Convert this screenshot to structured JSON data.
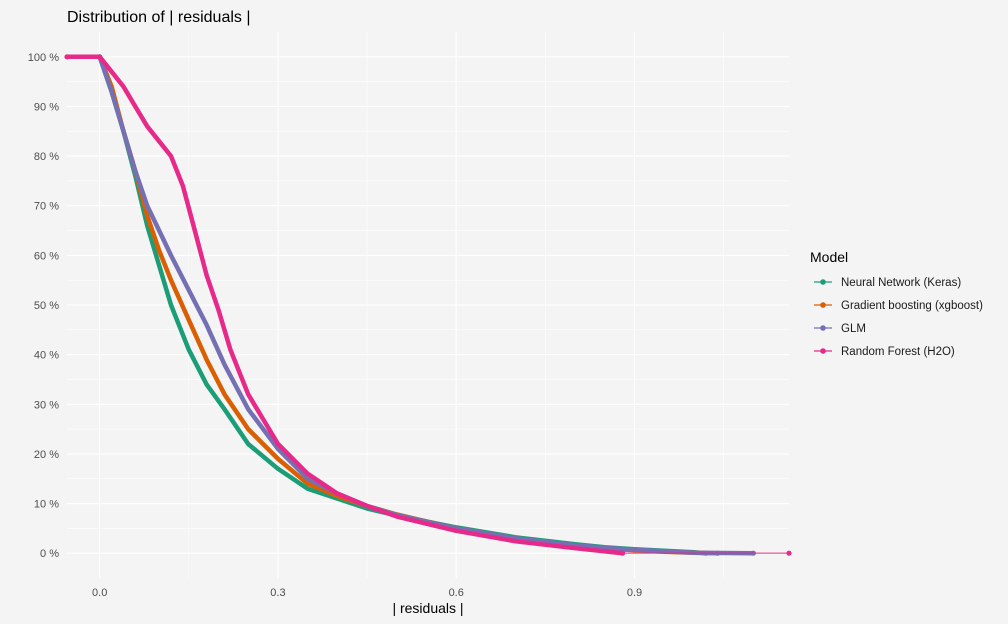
{
  "chart_data": {
    "type": "line",
    "title": "Distribution of | residuals |",
    "xlabel": "| residuals |",
    "ylabel": "",
    "xlim": [
      -0.055,
      1.16
    ],
    "ylim": [
      -0.05,
      1.05
    ],
    "x_ticks": [
      0.0,
      0.3,
      0.6,
      0.9
    ],
    "x_tick_labels": [
      "0.0",
      "0.3",
      "0.6",
      "0.9"
    ],
    "y_ticks": [
      0,
      0.1,
      0.2,
      0.3,
      0.4,
      0.5,
      0.6,
      0.7,
      0.8,
      0.9,
      1.0
    ],
    "y_tick_labels": [
      "0 %",
      "10 %",
      "20 %",
      "30 %",
      "40 %",
      "50 %",
      "60 %",
      "70 %",
      "80 %",
      "90 %",
      "100 %"
    ],
    "grid": true,
    "legend_title": "Model",
    "legend_position": "right",
    "series": [
      {
        "name": "Neural Network (Keras)",
        "color": "#1b9e77",
        "x": [
          0.0,
          0.02,
          0.04,
          0.06,
          0.08,
          0.1,
          0.12,
          0.15,
          0.18,
          0.21,
          0.25,
          0.3,
          0.35,
          0.4,
          0.45,
          0.5,
          0.6,
          0.7,
          0.8,
          0.85,
          0.9,
          0.95,
          1.0,
          1.02
        ],
        "y": [
          1.0,
          0.93,
          0.85,
          0.76,
          0.66,
          0.58,
          0.5,
          0.41,
          0.34,
          0.29,
          0.22,
          0.17,
          0.13,
          0.11,
          0.09,
          0.076,
          0.052,
          0.032,
          0.018,
          0.012,
          0.008,
          0.005,
          0.002,
          0.0
        ]
      },
      {
        "name": "Gradient boosting (xgboost)",
        "color": "#d95f02",
        "x": [
          0.0,
          0.02,
          0.04,
          0.06,
          0.08,
          0.1,
          0.12,
          0.15,
          0.18,
          0.21,
          0.25,
          0.3,
          0.35,
          0.4,
          0.45,
          0.5,
          0.6,
          0.7,
          0.8,
          0.85,
          0.9,
          0.95,
          1.0,
          1.04
        ],
        "y": [
          1.0,
          0.94,
          0.85,
          0.77,
          0.68,
          0.61,
          0.55,
          0.47,
          0.39,
          0.32,
          0.25,
          0.19,
          0.14,
          0.115,
          0.095,
          0.078,
          0.05,
          0.03,
          0.015,
          0.01,
          0.006,
          0.003,
          0.001,
          0.0
        ]
      },
      {
        "name": "GLM",
        "color": "#7570b3",
        "x": [
          0.0,
          0.02,
          0.04,
          0.06,
          0.08,
          0.1,
          0.12,
          0.15,
          0.18,
          0.21,
          0.25,
          0.3,
          0.35,
          0.4,
          0.45,
          0.5,
          0.6,
          0.7,
          0.8,
          0.85,
          0.9,
          0.95,
          1.0,
          1.1
        ],
        "y": [
          1.0,
          0.93,
          0.85,
          0.77,
          0.7,
          0.65,
          0.6,
          0.53,
          0.46,
          0.38,
          0.29,
          0.21,
          0.15,
          0.12,
          0.095,
          0.077,
          0.05,
          0.03,
          0.016,
          0.011,
          0.007,
          0.004,
          0.001,
          0.0
        ]
      },
      {
        "name": "Random Forest (H2O)",
        "color": "#e7298a",
        "x": [
          -0.055,
          0.0,
          0.02,
          0.04,
          0.06,
          0.08,
          0.1,
          0.12,
          0.14,
          0.16,
          0.18,
          0.2,
          0.22,
          0.25,
          0.3,
          0.35,
          0.4,
          0.45,
          0.5,
          0.6,
          0.7,
          0.8,
          0.88
        ],
        "y": [
          1.0,
          1.0,
          0.97,
          0.94,
          0.9,
          0.86,
          0.83,
          0.8,
          0.74,
          0.65,
          0.56,
          0.49,
          0.41,
          0.32,
          0.22,
          0.16,
          0.12,
          0.095,
          0.074,
          0.045,
          0.024,
          0.01,
          0.0
        ]
      }
    ],
    "extra_points": [
      {
        "series": "Random Forest (H2O)",
        "x": 1.16,
        "y": 0.0
      }
    ]
  }
}
